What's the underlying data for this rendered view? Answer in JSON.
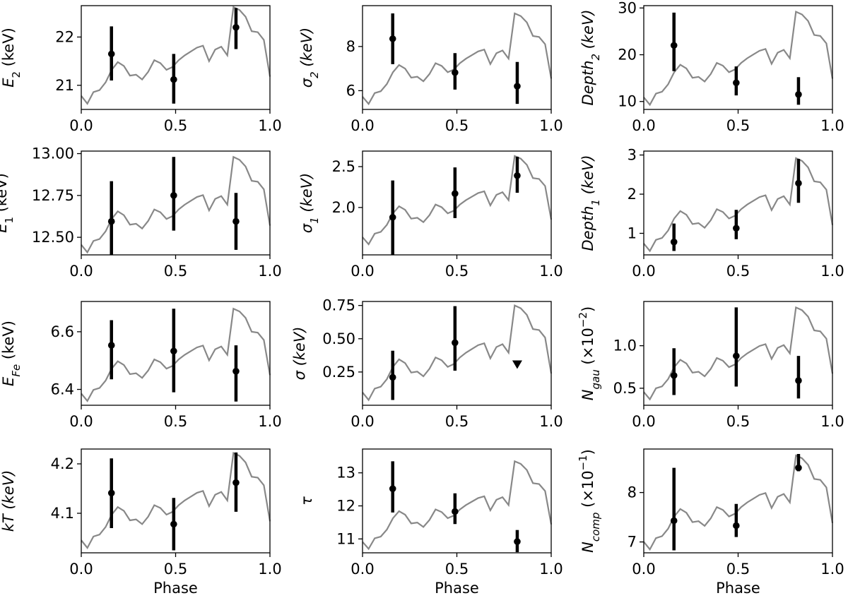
{
  "colors": {
    "data": "#000000",
    "profile": "#888888",
    "frame": "#000000"
  },
  "profile_shape": [
    0.08,
    0.0,
    0.12,
    0.14,
    0.22,
    0.35,
    0.43,
    0.39,
    0.29,
    0.3,
    0.25,
    0.33,
    0.45,
    0.42,
    0.35,
    0.38,
    0.45,
    0.5,
    0.54,
    0.58,
    0.6,
    0.44,
    0.56,
    0.59,
    0.5,
    1.0,
    0.97,
    0.9,
    0.75,
    0.74,
    0.66,
    0.28
  ],
  "chart_data": [
    {
      "type": "scatter",
      "ylabel": {
        "main": "E",
        "sub": "2",
        "rest": " (keV)"
      },
      "xlabel": "",
      "ylim": [
        20.5,
        22.65
      ],
      "yticks": [
        21,
        22
      ],
      "xticks": [
        "0.0",
        "0.5",
        "1.0"
      ],
      "xlim": [
        0,
        1
      ],
      "points": [
        {
          "x": 0.16,
          "y": 21.65,
          "lo": 21.1,
          "hi": 22.22
        },
        {
          "x": 0.49,
          "y": 21.12,
          "lo": 20.62,
          "hi": 21.65
        },
        {
          "x": 0.82,
          "y": 22.2,
          "lo": 21.75,
          "hi": 22.6
        }
      ],
      "profile_range": [
        20.62,
        22.62
      ]
    },
    {
      "type": "scatter",
      "ylabel": {
        "main": "σ",
        "sub": "2",
        "rest": " (keV)",
        "italic": true
      },
      "xlabel": "",
      "ylim": [
        5.15,
        9.85
      ],
      "yticks": [
        6,
        8
      ],
      "xticks": [
        "0.0",
        "0.5",
        "1.0"
      ],
      "xlim": [
        0,
        1
      ],
      "points": [
        {
          "x": 0.16,
          "y": 8.35,
          "lo": 7.2,
          "hi": 9.5
        },
        {
          "x": 0.49,
          "y": 6.82,
          "lo": 6.05,
          "hi": 7.7
        },
        {
          "x": 0.82,
          "y": 6.2,
          "lo": 5.4,
          "hi": 7.3
        }
      ],
      "profile_range": [
        5.4,
        9.5
      ]
    },
    {
      "type": "scatter",
      "ylabel": {
        "main": "Depth",
        "sub": "2",
        "rest": " (keV)",
        "italic": true
      },
      "xlabel": "",
      "ylim": [
        8.3,
        30.5
      ],
      "yticks": [
        10,
        20,
        30
      ],
      "xticks": [
        "0.0",
        "0.5",
        "1.0"
      ],
      "xlim": [
        0,
        1
      ],
      "points": [
        {
          "x": 0.16,
          "y": 22.0,
          "lo": 16.5,
          "hi": 29.0
        },
        {
          "x": 0.49,
          "y": 14.0,
          "lo": 11.3,
          "hi": 17.5
        },
        {
          "x": 0.82,
          "y": 11.5,
          "lo": 9.3,
          "hi": 15.2
        }
      ],
      "profile_range": [
        9.3,
        29.2
      ]
    },
    {
      "type": "scatter",
      "ylabel": {
        "main": "E",
        "sub": "1",
        "rest": " (keV)"
      },
      "xlabel": "",
      "ylim": [
        12.395,
        13.015
      ],
      "yticks": [
        "12.50",
        "12.75",
        "13.00"
      ],
      "xticks": [
        "0.0",
        "0.5",
        "1.0"
      ],
      "xlim": [
        0,
        1
      ],
      "points": [
        {
          "x": 0.16,
          "y": 12.595,
          "lo": 12.395,
          "hi": 12.835
        },
        {
          "x": 0.49,
          "y": 12.75,
          "lo": 12.54,
          "hi": 12.98
        },
        {
          "x": 0.82,
          "y": 12.595,
          "lo": 12.425,
          "hi": 12.765
        }
      ],
      "profile_range": [
        12.41,
        12.98
      ]
    },
    {
      "type": "scatter",
      "ylabel": {
        "main": "σ",
        "sub": "1",
        "rest": " (keV)",
        "italic": true
      },
      "xlabel": "",
      "ylim": [
        1.42,
        2.69
      ],
      "yticks": [
        "2.0",
        "2.5"
      ],
      "xticks": [
        "0.0",
        "0.5",
        "1.0"
      ],
      "xlim": [
        0,
        1
      ],
      "points": [
        {
          "x": 0.16,
          "y": 1.88,
          "lo": 1.42,
          "hi": 2.33
        },
        {
          "x": 0.49,
          "y": 2.17,
          "lo": 1.87,
          "hi": 2.49
        },
        {
          "x": 0.82,
          "y": 2.39,
          "lo": 2.18,
          "hi": 2.62
        }
      ],
      "profile_range": [
        1.55,
        2.63
      ]
    },
    {
      "type": "scatter",
      "ylabel": {
        "main": "Depth",
        "sub": "1",
        "rest": " (keV)",
        "italic": true
      },
      "xlabel": "",
      "ylim": [
        0.45,
        3.1
      ],
      "yticks": [
        1,
        2,
        3
      ],
      "xticks": [
        "0.0",
        "0.5",
        "1.0"
      ],
      "xlim": [
        0,
        1
      ],
      "points": [
        {
          "x": 0.16,
          "y": 0.78,
          "lo": 0.55,
          "hi": 1.25
        },
        {
          "x": 0.49,
          "y": 1.13,
          "lo": 0.85,
          "hi": 1.6
        },
        {
          "x": 0.82,
          "y": 2.28,
          "lo": 1.78,
          "hi": 2.9
        }
      ],
      "profile_range": [
        0.55,
        2.92
      ]
    },
    {
      "type": "scatter",
      "ylabel": {
        "main": "E",
        "sub": "Fe",
        "rest": " (keV)",
        "subItalic": true
      },
      "xlabel": "",
      "ylim": [
        6.345,
        6.705
      ],
      "yticks": [
        "6.4",
        "6.6"
      ],
      "xticks": [
        "0.0",
        "0.5",
        "1.0"
      ],
      "xlim": [
        0,
        1
      ],
      "points": [
        {
          "x": 0.16,
          "y": 6.553,
          "lo": 6.435,
          "hi": 6.64
        },
        {
          "x": 0.49,
          "y": 6.533,
          "lo": 6.39,
          "hi": 6.68
        },
        {
          "x": 0.82,
          "y": 6.463,
          "lo": 6.358,
          "hi": 6.553
        }
      ],
      "profile_range": [
        6.36,
        6.68
      ]
    },
    {
      "type": "scatter",
      "ylabel": {
        "main": "σ",
        "sub": "",
        "rest": " (keV)",
        "italic": true
      },
      "xlabel": "",
      "ylim": [
        0.0,
        0.78
      ],
      "yticks": [
        "0.25",
        "0.50",
        "0.75"
      ],
      "xticks": [
        "0.0",
        "0.5",
        "1.0"
      ],
      "xlim": [
        0,
        1
      ],
      "points": [
        {
          "x": 0.16,
          "y": 0.21,
          "lo": 0.04,
          "hi": 0.41
        },
        {
          "x": 0.49,
          "y": 0.47,
          "lo": 0.26,
          "hi": 0.745
        }
      ],
      "upper_limits": [
        {
          "x": 0.82,
          "y": 0.305
        }
      ],
      "profile_range": [
        0.04,
        0.75
      ]
    },
    {
      "type": "scatter",
      "ylabel": {
        "main": "N",
        "sub": "gau",
        "rest": " (×10",
        "sup": "−2",
        "close": ")",
        "subItalic": true
      },
      "xlabel": "",
      "ylim": [
        0.3,
        1.52
      ],
      "yticks": [
        "0.5",
        "1.0"
      ],
      "xticks": [
        "0.0",
        "0.5",
        "1.0"
      ],
      "xlim": [
        0,
        1
      ],
      "points": [
        {
          "x": 0.16,
          "y": 0.65,
          "lo": 0.42,
          "hi": 0.97
        },
        {
          "x": 0.49,
          "y": 0.88,
          "lo": 0.52,
          "hi": 1.45
        },
        {
          "x": 0.82,
          "y": 0.59,
          "lo": 0.38,
          "hi": 0.88
        }
      ],
      "profile_range": [
        0.37,
        1.45
      ]
    },
    {
      "type": "scatter",
      "ylabel": {
        "main": "kT",
        "sub": "",
        "rest": " (keV)",
        "italic": true
      },
      "xlabel": "Phase",
      "ylim": [
        4.02,
        4.23
      ],
      "yticks": [
        "4.1",
        "4.2"
      ],
      "xticks": [
        "0.0",
        "0.5",
        "1.0"
      ],
      "xlim": [
        0,
        1
      ],
      "points": [
        {
          "x": 0.16,
          "y": 4.141,
          "lo": 4.07,
          "hi": 4.211
        },
        {
          "x": 0.49,
          "y": 4.078,
          "lo": 4.025,
          "hi": 4.131
        },
        {
          "x": 0.82,
          "y": 4.162,
          "lo": 4.103,
          "hi": 4.223
        }
      ],
      "profile_range": [
        4.03,
        4.222
      ]
    },
    {
      "type": "scatter",
      "ylabel": {
        "main": "τ",
        "sub": "",
        "rest": "",
        "italic": true
      },
      "xlabel": "Phase",
      "ylim": [
        10.58,
        13.72
      ],
      "yticks": [
        11,
        12,
        13
      ],
      "xticks": [
        "0.0",
        "0.5",
        "1.0"
      ],
      "xlim": [
        0,
        1
      ],
      "points": [
        {
          "x": 0.16,
          "y": 12.52,
          "lo": 11.8,
          "hi": 13.35
        },
        {
          "x": 0.49,
          "y": 11.83,
          "lo": 11.45,
          "hi": 12.38
        },
        {
          "x": 0.82,
          "y": 10.92,
          "lo": 10.6,
          "hi": 11.27
        }
      ],
      "profile_range": [
        10.7,
        13.35
      ]
    },
    {
      "type": "scatter",
      "ylabel": {
        "main": "N",
        "sub": "comp",
        "rest": " (×10",
        "sup": "−1",
        "close": ")",
        "subItalic": true
      },
      "xlabel": "Phase",
      "ylim": [
        6.78,
        8.88
      ],
      "yticks": [
        7,
        8
      ],
      "xticks": [
        "0.0",
        "0.5",
        "1.0"
      ],
      "xlim": [
        0,
        1
      ],
      "points": [
        {
          "x": 0.16,
          "y": 7.43,
          "lo": 6.83,
          "hi": 8.5
        },
        {
          "x": 0.49,
          "y": 7.33,
          "lo": 7.1,
          "hi": 7.77
        },
        {
          "x": 0.82,
          "y": 8.5,
          "lo": 8.43,
          "hi": 8.78
        }
      ],
      "profile_range": [
        6.85,
        8.75
      ]
    }
  ]
}
